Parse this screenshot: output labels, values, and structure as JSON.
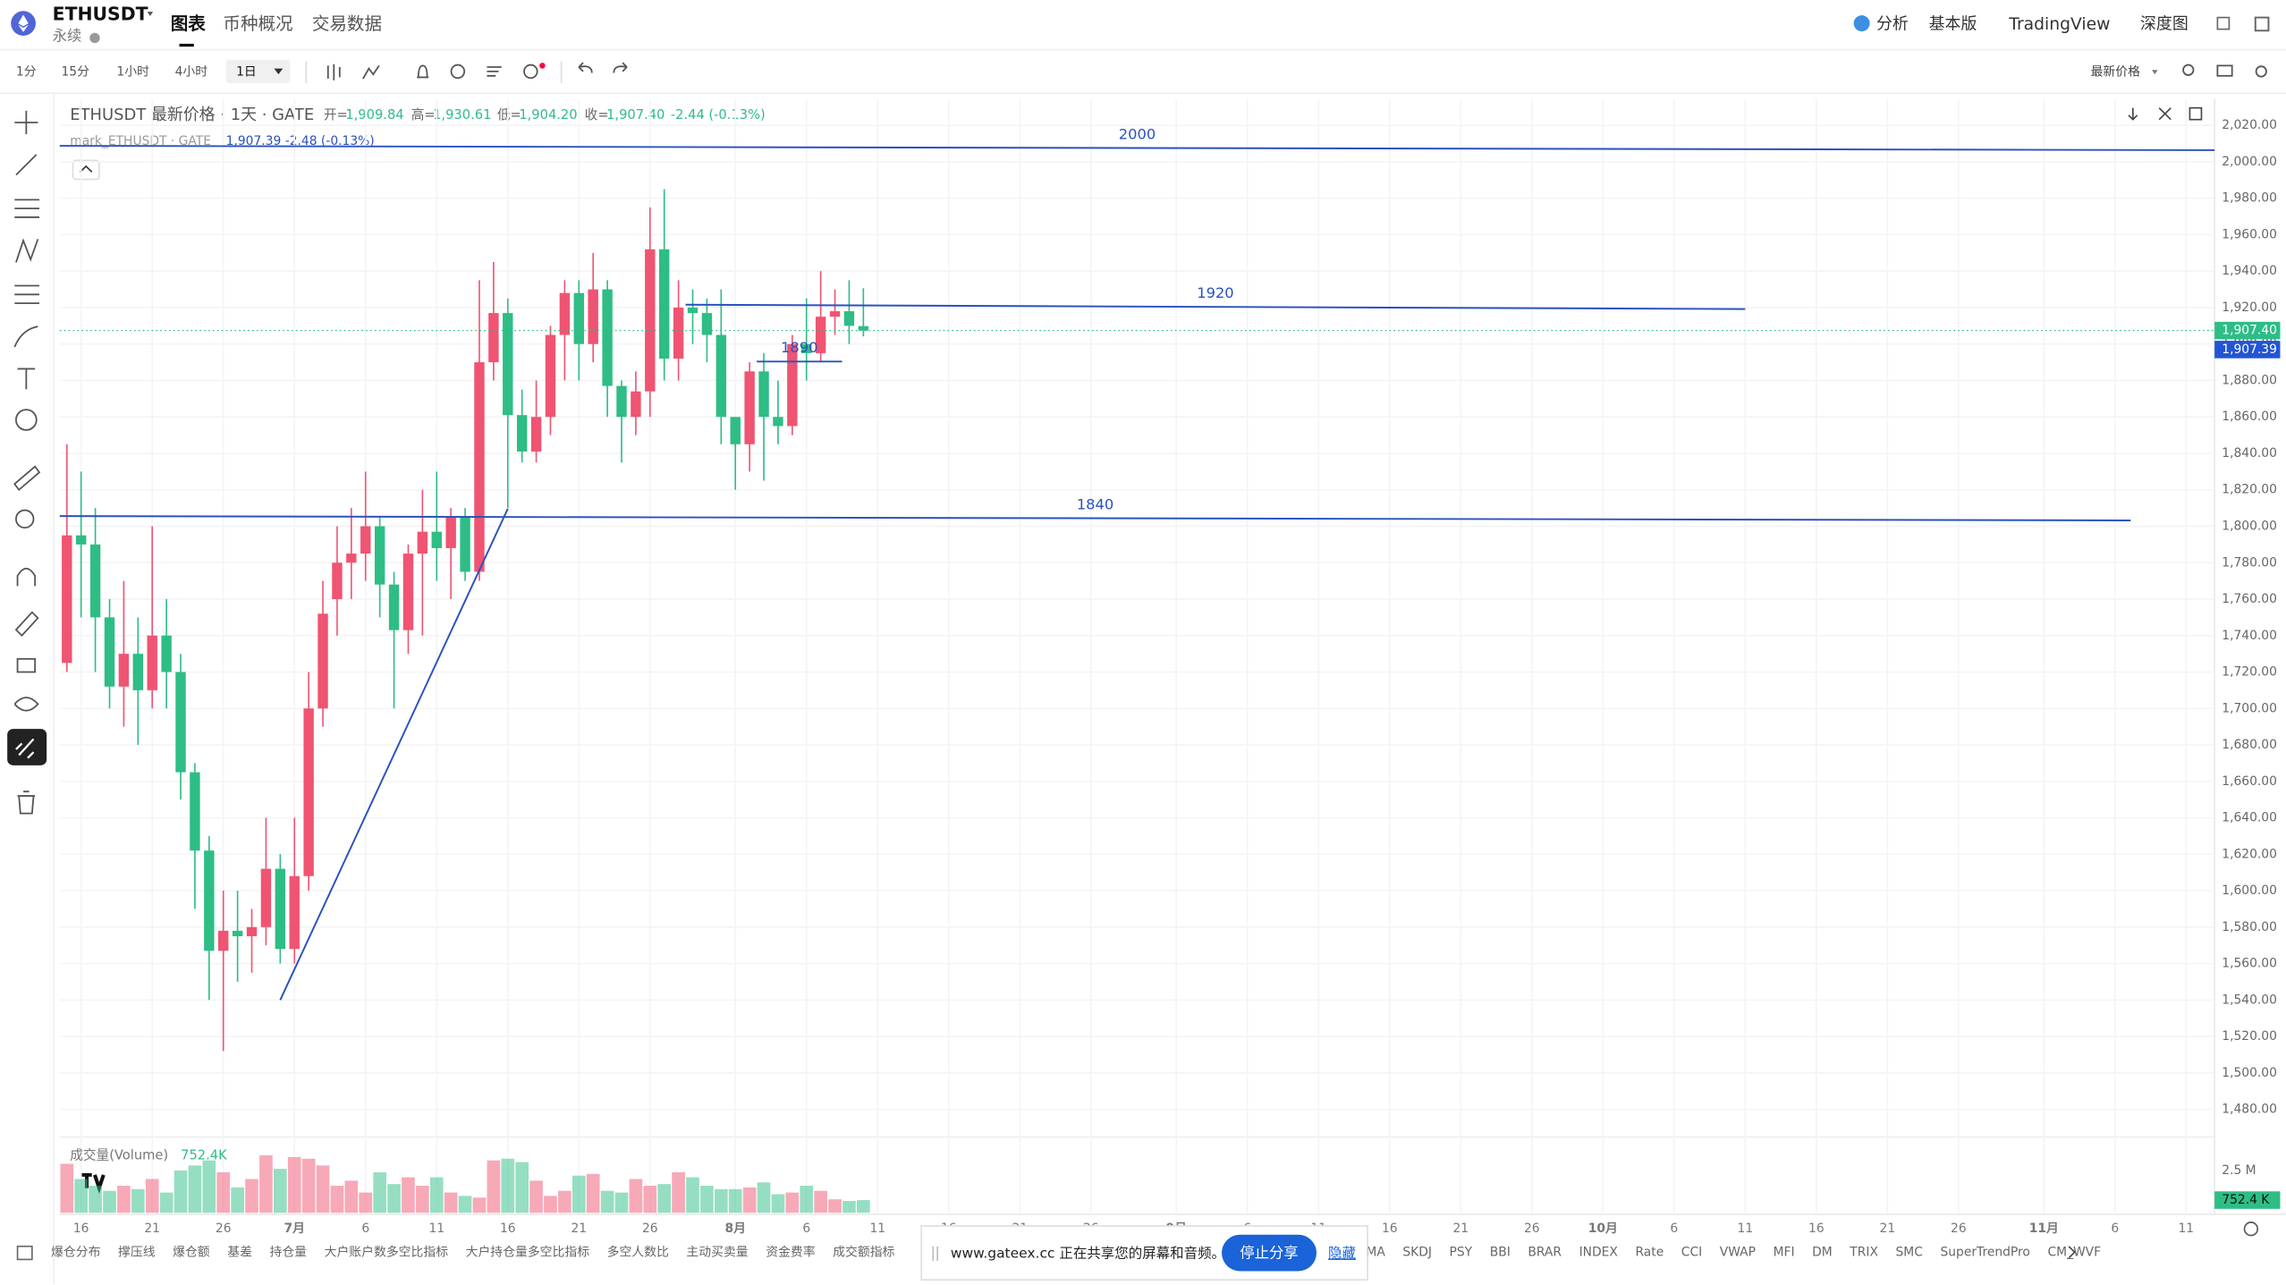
{
  "header": {
    "symbol": "ETHUSDT",
    "contract": "永续",
    "tabs": [
      "图表",
      "币种概况",
      "交易数据"
    ],
    "right": [
      "分析",
      "基本版",
      "TradingView",
      "深度图"
    ]
  },
  "toolbar": {
    "intervals": [
      "1分",
      "15分",
      "1小时",
      "4小时",
      "1日"
    ],
    "price_type": "最新价格"
  },
  "legend": {
    "title": "ETHUSDT 最新价格 · 1天 · GATE",
    "fields": [
      {
        "name": "开=",
        "label": "1,909.84"
      },
      {
        "name": "高=",
        "label": "1,930.61"
      },
      {
        "name": "低=",
        "label": "1,904.20"
      },
      {
        "name": "收=",
        "label": "1,907.40"
      }
    ],
    "change": "-2.44 (-0.13%)",
    "mark": "mark_ETHUSDT · GATE",
    "mark_values": "1,907.39 -2.48 (-0.13%)"
  },
  "chart_data": {
    "type": "candlestick",
    "up_color": "#ef5472",
    "down_color": "#2ebd85",
    "x": [
      0,
      1,
      2,
      3,
      4,
      5,
      6,
      7,
      8,
      9,
      10,
      11,
      12,
      13,
      14,
      15,
      16,
      17,
      18,
      19,
      20,
      21,
      22,
      23,
      24,
      25,
      26,
      27,
      28,
      29,
      30,
      31,
      32,
      33,
      34,
      35,
      36,
      37,
      38,
      39,
      40,
      41,
      42,
      43,
      44,
      45,
      46,
      47,
      48,
      49,
      50,
      51,
      52,
      53,
      54,
      55,
      56
    ],
    "open": [
      1725,
      1795,
      1790,
      1750,
      1712,
      1730,
      1710,
      1740,
      1720,
      1665,
      1622,
      1567,
      1578,
      1575,
      1580,
      1612,
      1568,
      1608,
      1700,
      1760,
      1780,
      1785,
      1800,
      1768,
      1743,
      1785,
      1797,
      1788,
      1805,
      1775,
      1890,
      1917,
      1861,
      1841,
      1860,
      1905,
      1928,
      1900,
      1930,
      1877,
      1860,
      1874,
      1952,
      1892,
      1920,
      1917,
      1905,
      1860,
      1845,
      1885,
      1860,
      1855,
      1900,
      1895,
      1915,
      1918,
      1909.84
    ],
    "high": [
      1845,
      1830,
      1810,
      1760,
      1770,
      1750,
      1800,
      1760,
      1730,
      1670,
      1630,
      1600,
      1600,
      1590,
      1640,
      1620,
      1640,
      1720,
      1770,
      1800,
      1810,
      1830,
      1805,
      1775,
      1790,
      1820,
      1830,
      1810,
      1810,
      1935,
      1945,
      1925,
      1875,
      1880,
      1910,
      1935,
      1935,
      1950,
      1935,
      1880,
      1885,
      1975,
      1985,
      1935,
      1930,
      1925,
      1930,
      1860,
      1890,
      1895,
      1880,
      1905,
      1925,
      1940,
      1930,
      1935,
      1930.61
    ],
    "low": [
      1720,
      1750,
      1720,
      1700,
      1690,
      1680,
      1700,
      1700,
      1650,
      1590,
      1540,
      1512,
      1550,
      1555,
      1570,
      1560,
      1560,
      1600,
      1690,
      1740,
      1760,
      1770,
      1750,
      1700,
      1730,
      1740,
      1770,
      1760,
      1770,
      1770,
      1880,
      1810,
      1835,
      1835,
      1850,
      1880,
      1880,
      1890,
      1860,
      1835,
      1850,
      1860,
      1880,
      1880,
      1900,
      1890,
      1845,
      1820,
      1830,
      1825,
      1845,
      1850,
      1880,
      1890,
      1905,
      1900,
      1904.2
    ],
    "close": [
      1795,
      1790,
      1750,
      1712,
      1730,
      1710,
      1740,
      1720,
      1665,
      1622,
      1567,
      1578,
      1575,
      1580,
      1612,
      1568,
      1608,
      1700,
      1752,
      1780,
      1785,
      1800,
      1768,
      1743,
      1785,
      1797,
      1788,
      1805,
      1775,
      1890,
      1917,
      1861,
      1841,
      1860,
      1905,
      1928,
      1900,
      1930,
      1877,
      1860,
      1874,
      1952,
      1892,
      1920,
      1917,
      1905,
      1860,
      1845,
      1885,
      1860,
      1855,
      1900,
      1895,
      1915,
      1918,
      1910,
      1907.4
    ],
    "xlim": [
      -0.5,
      151
    ],
    "xticks": [
      {
        "value": 1,
        "label": "16"
      },
      {
        "value": 6,
        "label": "21"
      },
      {
        "value": 11,
        "label": "26"
      },
      {
        "value": 16,
        "label": "7月"
      },
      {
        "value": 21,
        "label": "6"
      },
      {
        "value": 26,
        "label": "11"
      },
      {
        "value": 31,
        "label": "16"
      },
      {
        "value": 36,
        "label": "21"
      },
      {
        "value": 41,
        "label": "26"
      },
      {
        "value": 47,
        "label": "8月"
      },
      {
        "value": 52,
        "label": "6"
      },
      {
        "value": 57,
        "label": "11"
      },
      {
        "value": 62,
        "label": "16"
      },
      {
        "value": 67,
        "label": "21"
      },
      {
        "value": 72,
        "label": "26"
      },
      {
        "value": 78,
        "label": "9月"
      },
      {
        "value": 83,
        "label": "6"
      },
      {
        "value": 88,
        "label": "11"
      },
      {
        "value": 93,
        "label": "16"
      },
      {
        "value": 98,
        "label": "21"
      },
      {
        "value": 103,
        "label": "26"
      },
      {
        "value": 108,
        "label": "10月"
      },
      {
        "value": 113,
        "label": "6"
      },
      {
        "value": 118,
        "label": "11"
      },
      {
        "value": 123,
        "label": "16"
      },
      {
        "value": 128,
        "label": "21"
      },
      {
        "value": 133,
        "label": "26"
      },
      {
        "value": 139,
        "label": "11月"
      },
      {
        "value": 144,
        "label": "6"
      },
      {
        "value": 149,
        "label": "11"
      }
    ],
    "ylim": [
      1464.8,
      2034.4
    ],
    "yticks": [
      {
        "value": 1480,
        "label": "1,480.00"
      },
      {
        "value": 1500,
        "label": "1,500.00"
      },
      {
        "value": 1520,
        "label": "1,520.00"
      },
      {
        "value": 1540,
        "label": "1,540.00"
      },
      {
        "value": 1560,
        "label": "1,560.00"
      },
      {
        "value": 1580,
        "label": "1,580.00"
      },
      {
        "value": 1600,
        "label": "1,600.00"
      },
      {
        "value": 1620,
        "label": "1,620.00"
      },
      {
        "value": 1640,
        "label": "1,640.00"
      },
      {
        "value": 1660,
        "label": "1,660.00"
      },
      {
        "value": 1680,
        "label": "1,680.00"
      },
      {
        "value": 1700,
        "label": "1,700.00"
      },
      {
        "value": 1720,
        "label": "1,720.00"
      },
      {
        "value": 1740,
        "label": "1,740.00"
      },
      {
        "value": 1760,
        "label": "1,760.00"
      },
      {
        "value": 1780,
        "label": "1,780.00"
      },
      {
        "value": 1800,
        "label": "1,800.00"
      },
      {
        "value": 1820,
        "label": "1,820.00"
      },
      {
        "value": 1840,
        "label": "1,840.00"
      },
      {
        "value": 1860,
        "label": "1,860.00"
      },
      {
        "value": 1880,
        "label": "1,880.00"
      },
      {
        "value": 1900,
        "label": "1,900.00"
      },
      {
        "value": 1920,
        "label": "1,920.00"
      },
      {
        "value": 1940,
        "label": "1,940.00"
      },
      {
        "value": 1960,
        "label": "1,960.00"
      },
      {
        "value": 1980,
        "label": "1,980.00"
      },
      {
        "value": 2000,
        "label": "2,000.00"
      },
      {
        "value": 2020,
        "label": "2,020.00"
      }
    ],
    "grid": true,
    "last_price_label": "1,907.40",
    "mark_price": 1907.39,
    "mark_price_label": "1,907.39",
    "mark_color": "#2255d4",
    "lines": [
      {
        "text": "2000",
        "x": [
          -0.5,
          151
        ],
        "y": [
          2008.8,
          2006.4
        ]
      },
      {
        "text": "1920",
        "x": [
          43.5,
          118
        ],
        "y": [
          1921.6,
          1919.2
        ]
      },
      {
        "text": "1840",
        "x": [
          -0.5,
          145.1
        ],
        "y": [
          1805.6,
          1803.2
        ]
      },
      {
        "text": "1890",
        "x": [
          48.5,
          54.5
        ],
        "y": [
          1890.4,
          1890.4
        ]
      }
    ],
    "trend_line": {
      "x": [
        15,
        31
      ],
      "y": [
        1540,
        1809.6
      ]
    },
    "line_color": "#2a52be",
    "volume": {
      "name": "成交量(Volume)",
      "values": [
        2900000,
        2000000,
        1600000,
        1300000,
        1600000,
        1400000,
        2000000,
        1200000,
        2500000,
        2800000,
        3100000,
        2400000,
        1500000,
        2000000,
        3400000,
        2600000,
        3300000,
        3200000,
        2800000,
        1600000,
        1900000,
        1200000,
        2400000,
        1700000,
        2100000,
        1600000,
        2100000,
        1200000,
        1000000,
        900000,
        3100000,
        3200000,
        3000000,
        1900000,
        1000000,
        1300000,
        2200000,
        2300000,
        1300000,
        1200000,
        2000000,
        1600000,
        1700000,
        2400000,
        2100000,
        1600000,
        1400000,
        1400000,
        1500000,
        1800000,
        1100000,
        1200000,
        1600000,
        1300000,
        800000,
        700000,
        752400
      ],
      "last_label": "752.4K",
      "axis_label": "752.4 K",
      "ylim": [
        0,
        4138000
      ],
      "yticks": [
        {
          "value": 2500000,
          "label": "2.5 M"
        }
      ]
    }
  },
  "indicators": {
    "left": [
      "爆仓分布",
      "撑压线",
      "爆仓额",
      "基差",
      "持仓量",
      "大户账户数多空比指标",
      "大户持仓量多空比指标",
      "多空人数比",
      "主动买卖量",
      "资金费率",
      "成交额指标"
    ],
    "right": [
      "MA",
      "SKDJ",
      "PSY",
      "BBI",
      "BRAR",
      "INDEX",
      "Rate",
      "CCI",
      "VWAP",
      "MFI",
      "DM",
      "TRIX",
      "SMC",
      "SuperTrendPro",
      "CM_WVF"
    ]
  },
  "share_popup": {
    "message": "www.gateex.cc 正在共享您的屏幕和音频。",
    "stop": "停止分享",
    "hide": "隐藏"
  }
}
